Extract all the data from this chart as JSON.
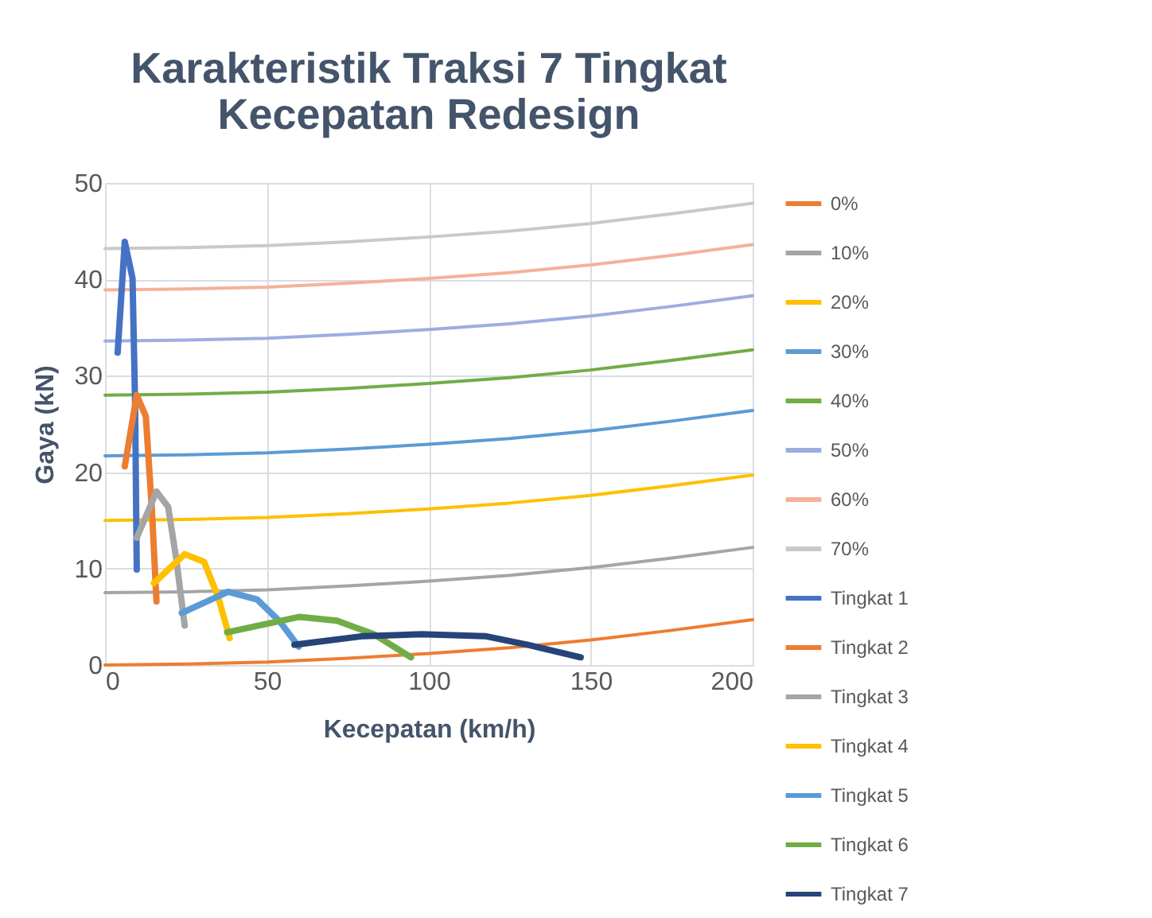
{
  "chart_data": {
    "type": "line",
    "title": [
      "Karakteristik Traksi 7 Tingkat",
      "Kecepatan Redesign"
    ],
    "xlabel": "Kecepatan (km/h)",
    "ylabel": "Gaya (kN)",
    "xlim": [
      0,
      200
    ],
    "ylim": [
      0,
      50
    ],
    "xticks": [
      0,
      50,
      100,
      150,
      200
    ],
    "yticks": [
      0,
      10,
      20,
      30,
      40,
      50
    ],
    "grid": true,
    "legend": "right",
    "marker": "none",
    "line_style": "solid",
    "x": [
      0,
      25,
      50,
      75,
      100,
      125,
      150,
      175,
      200
    ],
    "series": [
      {
        "name": "0%",
        "color": "#ed7d31",
        "values": [
          0,
          0.1,
          0.3,
          0.7,
          1.2,
          1.8,
          2.6,
          3.6,
          4.7
        ]
      },
      {
        "name": "10%",
        "color": "#a5a5a5",
        "values": [
          7.5,
          7.6,
          7.8,
          8.2,
          8.7,
          9.3,
          10.1,
          11.1,
          12.2
        ]
      },
      {
        "name": "20%",
        "color": "#ffc000",
        "values": [
          15,
          15.1,
          15.3,
          15.7,
          16.2,
          16.8,
          17.6,
          18.6,
          19.7
        ]
      },
      {
        "name": "30%",
        "color": "#5b9bd5",
        "values": [
          21.7,
          21.8,
          22,
          22.4,
          22.9,
          23.5,
          24.3,
          25.3,
          26.4
        ]
      },
      {
        "name": "40%",
        "color": "#70ad47",
        "values": [
          28,
          28.1,
          28.3,
          28.7,
          29.2,
          29.8,
          30.6,
          31.6,
          32.7
        ]
      },
      {
        "name": "50%",
        "color": "#9dade0",
        "values": [
          33.6,
          33.7,
          33.9,
          34.3,
          34.8,
          35.4,
          36.2,
          37.2,
          38.3
        ]
      },
      {
        "name": "60%",
        "color": "#f4b19a",
        "values": [
          38.9,
          39,
          39.2,
          39.6,
          40.1,
          40.7,
          41.5,
          42.5,
          43.6
        ]
      },
      {
        "name": "70%",
        "color": "#c9c9c9",
        "values": [
          43.2,
          43.3,
          43.5,
          43.9,
          44.4,
          45,
          45.8,
          46.8,
          47.9
        ]
      },
      {
        "name": "Tingkat 1",
        "color": "#4472c4",
        "x": [
          3.9,
          6.1,
          8.5,
          9.3,
          9.8
        ],
        "values": [
          32.4,
          43.9,
          40.1,
          26.9,
          9.9
        ]
      },
      {
        "name": "Tingkat 2",
        "color": "#ed7d31",
        "x": [
          6.1,
          9.8,
          12.6,
          14.5,
          15.9
        ],
        "values": [
          20.6,
          28,
          25.8,
          16,
          6.6
        ]
      },
      {
        "name": "Tingkat 3",
        "color": "#a5a5a5",
        "x": [
          9.8,
          15.9,
          19.5,
          22,
          24.6
        ],
        "values": [
          13.2,
          18,
          16.4,
          11,
          4.1
        ]
      },
      {
        "name": "Tingkat 4",
        "color": "#ffc000",
        "x": [
          15.1,
          24.6,
          30.6,
          35,
          38.5
        ],
        "values": [
          8.5,
          11.5,
          10.7,
          7,
          2.8
        ]
      },
      {
        "name": "Tingkat 5",
        "color": "#5b9bd5",
        "x": [
          23.7,
          38,
          47,
          54,
          59.8
        ],
        "values": [
          5.4,
          7.6,
          6.8,
          4.5,
          1.9
        ]
      },
      {
        "name": "Tingkat 6",
        "color": "#70ad47",
        "x": [
          37.7,
          60.1,
          71.6,
          83,
          94.5
        ],
        "values": [
          3.4,
          5,
          4.6,
          3.2,
          0.8
        ]
      },
      {
        "name": "Tingkat 7",
        "color": "#264478",
        "x": [
          58.5,
          79.8,
          97.8,
          117.4,
          130.6,
          146.9
        ],
        "values": [
          2.1,
          3,
          3.2,
          3,
          2.1,
          0.8
        ]
      }
    ]
  }
}
